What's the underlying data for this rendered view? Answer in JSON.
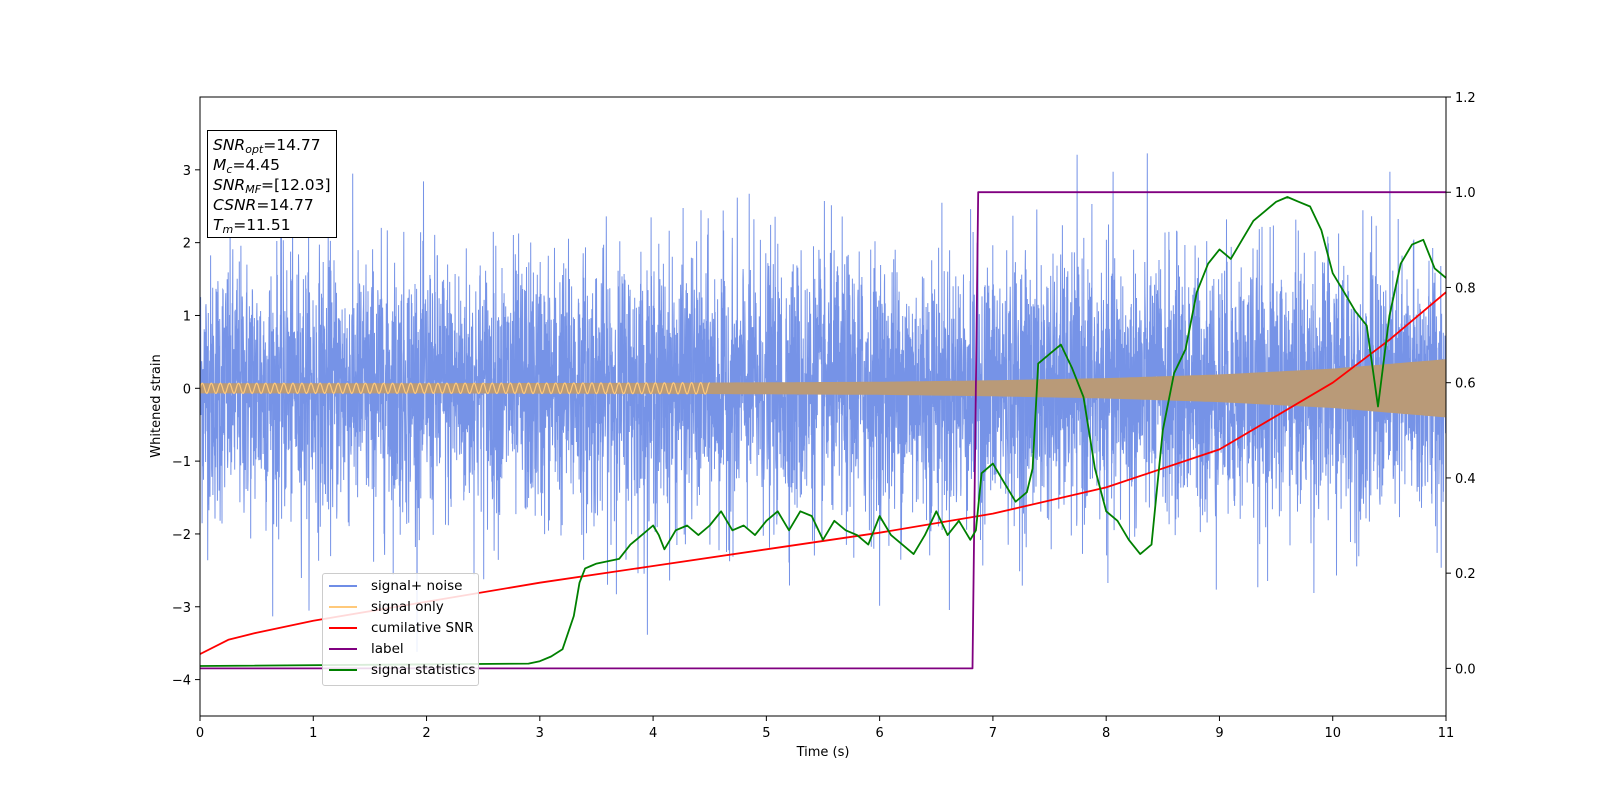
{
  "chart_data": {
    "type": "line",
    "xlabel": "Time (s)",
    "ylabel": "Whitened strain",
    "xlim": [
      0,
      11
    ],
    "ylim": [
      -4.5,
      4.0
    ],
    "y2lim": [
      -0.1,
      1.2
    ],
    "x_ticks": [
      "0",
      "1",
      "2",
      "3",
      "4",
      "5",
      "6",
      "7",
      "8",
      "9",
      "10",
      "11"
    ],
    "y_ticks": [
      "−4",
      "−3",
      "−2",
      "−1",
      "0",
      "1",
      "2",
      "3"
    ],
    "y2_ticks": [
      "0.0",
      "0.2",
      "0.4",
      "0.6",
      "0.8",
      "1.0",
      "1.2"
    ],
    "legend_position": "lower-left",
    "info_box": {
      "snr_opt": "14.77",
      "mc": "4.45",
      "snr_mf": "[12.03]",
      "csnr": "14.77",
      "tm": "11.51"
    },
    "series": [
      {
        "name": "signal+ noise",
        "color": "#6f8de6",
        "axis": "left",
        "description_range": [
          -4.15,
          3.6
        ]
      },
      {
        "name": "signal only",
        "color": "#ffc97a",
        "axis": "left",
        "envelope": {
          "x": [
            0,
            2,
            4,
            6,
            7,
            8,
            9,
            10,
            11
          ],
          "amp": [
            0.07,
            0.07,
            0.075,
            0.09,
            0.11,
            0.14,
            0.19,
            0.27,
            0.4
          ]
        }
      },
      {
        "name": "cumilative SNR",
        "color": "#ff0000",
        "axis": "right",
        "x": [
          0,
          0.25,
          0.5,
          1,
          2,
          3,
          4,
          5,
          6,
          7,
          8,
          9,
          10,
          10.5,
          11
        ],
        "y": [
          0.03,
          0.06,
          0.075,
          0.1,
          0.14,
          0.18,
          0.215,
          0.25,
          0.285,
          0.325,
          0.38,
          0.46,
          0.6,
          0.69,
          0.79
        ]
      },
      {
        "name": "label",
        "color": "#800080",
        "axis": "right",
        "x": [
          0,
          6.82,
          6.87,
          11
        ],
        "y": [
          0,
          0,
          1,
          1
        ]
      },
      {
        "name": "signal statistics",
        "color": "#008000",
        "axis": "right",
        "x": [
          0,
          2.9,
          3.0,
          3.1,
          3.2,
          3.3,
          3.35,
          3.4,
          3.45,
          3.5,
          3.6,
          3.7,
          3.8,
          3.9,
          4.0,
          4.05,
          4.1,
          4.15,
          4.2,
          4.3,
          4.4,
          4.5,
          4.6,
          4.7,
          4.8,
          4.9,
          5.0,
          5.1,
          5.2,
          5.3,
          5.4,
          5.5,
          5.6,
          5.7,
          5.8,
          5.9,
          6.0,
          6.1,
          6.2,
          6.3,
          6.4,
          6.5,
          6.6,
          6.7,
          6.8,
          6.85,
          6.9,
          7.0,
          7.1,
          7.2,
          7.3,
          7.35,
          7.4,
          7.5,
          7.6,
          7.7,
          7.8,
          7.9,
          8.0,
          8.1,
          8.2,
          8.3,
          8.4,
          8.5,
          8.6,
          8.7,
          8.8,
          8.9,
          9.0,
          9.1,
          9.2,
          9.3,
          9.4,
          9.5,
          9.6,
          9.7,
          9.8,
          9.9,
          10.0,
          10.1,
          10.2,
          10.3,
          10.4,
          10.5,
          10.6,
          10.7,
          10.8,
          10.9,
          11.0
        ],
        "y": [
          0.005,
          0.01,
          0.015,
          0.025,
          0.04,
          0.11,
          0.18,
          0.21,
          0.215,
          0.22,
          0.225,
          0.23,
          0.26,
          0.28,
          0.3,
          0.28,
          0.25,
          0.27,
          0.29,
          0.3,
          0.28,
          0.3,
          0.33,
          0.29,
          0.3,
          0.28,
          0.31,
          0.33,
          0.29,
          0.33,
          0.32,
          0.27,
          0.31,
          0.29,
          0.28,
          0.26,
          0.32,
          0.28,
          0.26,
          0.24,
          0.28,
          0.33,
          0.28,
          0.31,
          0.27,
          0.29,
          0.41,
          0.43,
          0.39,
          0.35,
          0.37,
          0.42,
          0.64,
          0.66,
          0.68,
          0.63,
          0.57,
          0.42,
          0.33,
          0.31,
          0.27,
          0.24,
          0.26,
          0.5,
          0.62,
          0.67,
          0.79,
          0.85,
          0.88,
          0.86,
          0.9,
          0.94,
          0.96,
          0.98,
          0.99,
          0.98,
          0.97,
          0.92,
          0.83,
          0.79,
          0.75,
          0.72,
          0.55,
          0.74,
          0.85,
          0.89,
          0.9,
          0.84,
          0.82
        ]
      }
    ]
  }
}
